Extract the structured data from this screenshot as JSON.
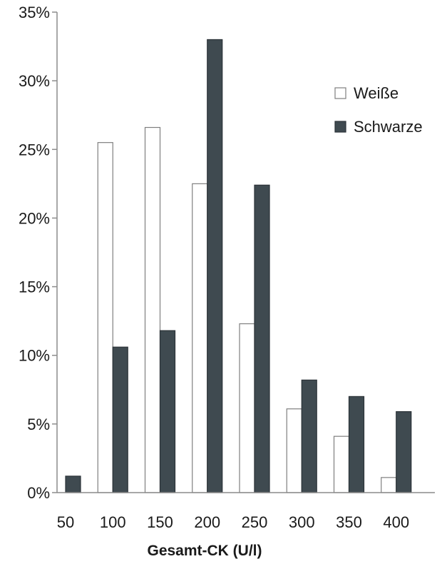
{
  "chart_data": {
    "type": "bar",
    "title": "",
    "xlabel": "Gesamt-CK (U/l)",
    "ylabel": "",
    "categories": [
      "50",
      "100",
      "150",
      "200",
      "250",
      "300",
      "350",
      "400"
    ],
    "y_ticks": [
      "0%",
      "5%",
      "10%",
      "15%",
      "20%",
      "25%",
      "30%",
      "35%"
    ],
    "ylim": [
      0,
      35
    ],
    "y_unit": "%",
    "grid": false,
    "legend_position": "top-right",
    "series": [
      {
        "name": "Weiße",
        "values": [
          0,
          25.5,
          26.6,
          22.5,
          12.3,
          6.1,
          4.1,
          1.1
        ],
        "fill": "#ffffff",
        "stroke": "#7f7f7f"
      },
      {
        "name": "Schwarze",
        "values": [
          1.2,
          10.6,
          11.8,
          33.0,
          22.4,
          8.2,
          7.0,
          5.9
        ],
        "fill": "#3f4a50",
        "stroke": "#2c3338"
      }
    ]
  }
}
